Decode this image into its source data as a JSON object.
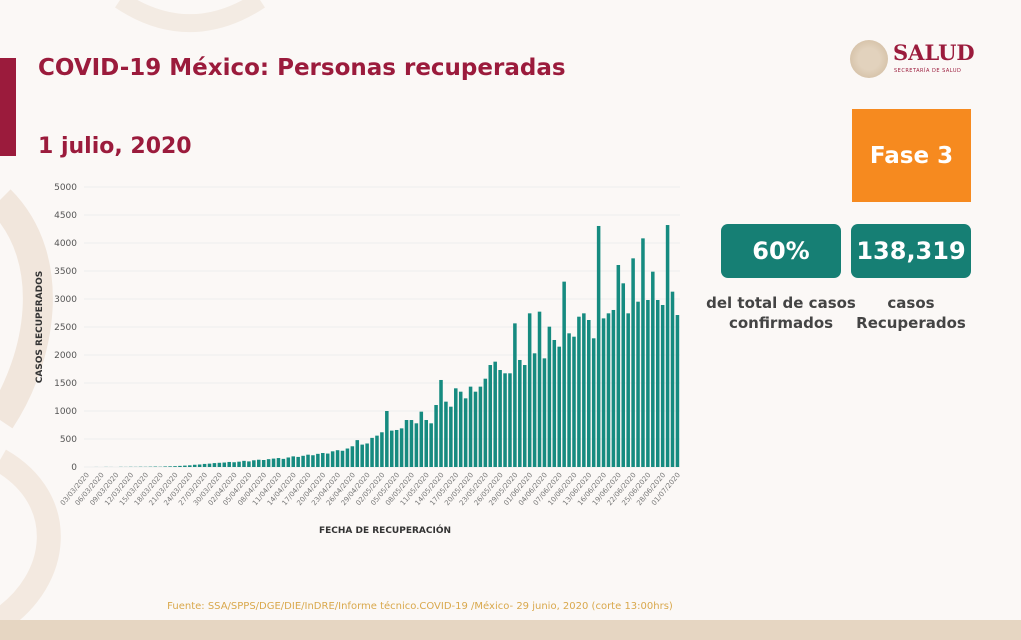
{
  "header": {
    "title": "COVID-19 México: Personas recuperadas",
    "date": "1 julio, 2020"
  },
  "logo": {
    "name": "SALUD",
    "subtitle": "SECRETARÍA DE SALUD"
  },
  "phase": {
    "label": "Fase 3",
    "color": "#f68a1f"
  },
  "stats": [
    {
      "value": "60%",
      "caption_line1": "del total de casos",
      "caption_line2": "confirmados"
    },
    {
      "value": "138,319",
      "caption_line1": "casos",
      "caption_line2": "Recuperados"
    }
  ],
  "source": "Fuente: SSA/SPPS/DGE/DIE/InDRE/Informe técnico.COVID-19 /México- 29 junio, 2020 (corte 13:00hrs)",
  "colors": {
    "accent": "#9b1b3c",
    "bar": "#168b80",
    "stat_box": "#167f74"
  },
  "chart_data": {
    "type": "bar",
    "title": "",
    "xlabel": "FECHA DE RECUPERACIÓN",
    "ylabel": "CASOS RECUPERADOS",
    "ylim": [
      0,
      5000
    ],
    "yticks": [
      0,
      500,
      1000,
      1500,
      2000,
      2500,
      3000,
      3500,
      4000,
      4500,
      5000
    ],
    "grid": true,
    "x_start": "03/03/2020",
    "x_end": "01/07/2020",
    "x_tick_labels": [
      "03/03/2020",
      "06/03/2020",
      "09/03/2020",
      "12/03/2020",
      "15/03/2020",
      "18/03/2020",
      "21/03/2020",
      "24/03/2020",
      "27/03/2020",
      "30/03/2020",
      "02/04/2020",
      "05/04/2020",
      "08/04/2020",
      "11/04/2020",
      "14/04/2020",
      "17/04/2020",
      "20/04/2020",
      "23/04/2020",
      "26/04/2020",
      "29/04/2020",
      "02/05/2020",
      "05/05/2020",
      "08/05/2020",
      "11/05/2020",
      "14/05/2020",
      "17/05/2020",
      "20/05/2020",
      "23/05/2020",
      "26/05/2020",
      "29/05/2020",
      "01/06/2020",
      "04/06/2020",
      "07/06/2020",
      "10/06/2020",
      "13/06/2020",
      "16/06/2020",
      "19/06/2020",
      "22/06/2020",
      "25/06/2020",
      "28/06/2020",
      "01/07/2020"
    ],
    "values": [
      0,
      0,
      1,
      0,
      2,
      1,
      0,
      3,
      2,
      4,
      3,
      5,
      4,
      6,
      8,
      5,
      10,
      12,
      15,
      20,
      25,
      30,
      40,
      45,
      55,
      60,
      70,
      75,
      80,
      90,
      85,
      95,
      110,
      100,
      120,
      130,
      125,
      140,
      150,
      160,
      145,
      170,
      190,
      180,
      200,
      220,
      210,
      235,
      250,
      240,
      280,
      300,
      290,
      330,
      370,
      480,
      400,
      420,
      520,
      560,
      620,
      1000,
      650,
      661,
      690,
      839,
      839,
      780,
      988,
      839,
      780,
      1107,
      1554,
      1167,
      1077,
      1405,
      1345,
      1226,
      1435,
      1345,
      1435,
      1577,
      1821,
      1881,
      1732,
      1673,
      1673,
      2565,
      1911,
      1821,
      2744,
      2030,
      2774,
      1940,
      2506,
      2268,
      2149,
      3310,
      2387,
      2327,
      2684,
      2744,
      2625,
      2298,
      4304,
      2654,
      2744,
      2804,
      3607,
      3280,
      2744,
      3726,
      2952,
      4083,
      2982,
      3488,
      2982,
      2893,
      4321,
      3131,
      2714
    ]
  }
}
